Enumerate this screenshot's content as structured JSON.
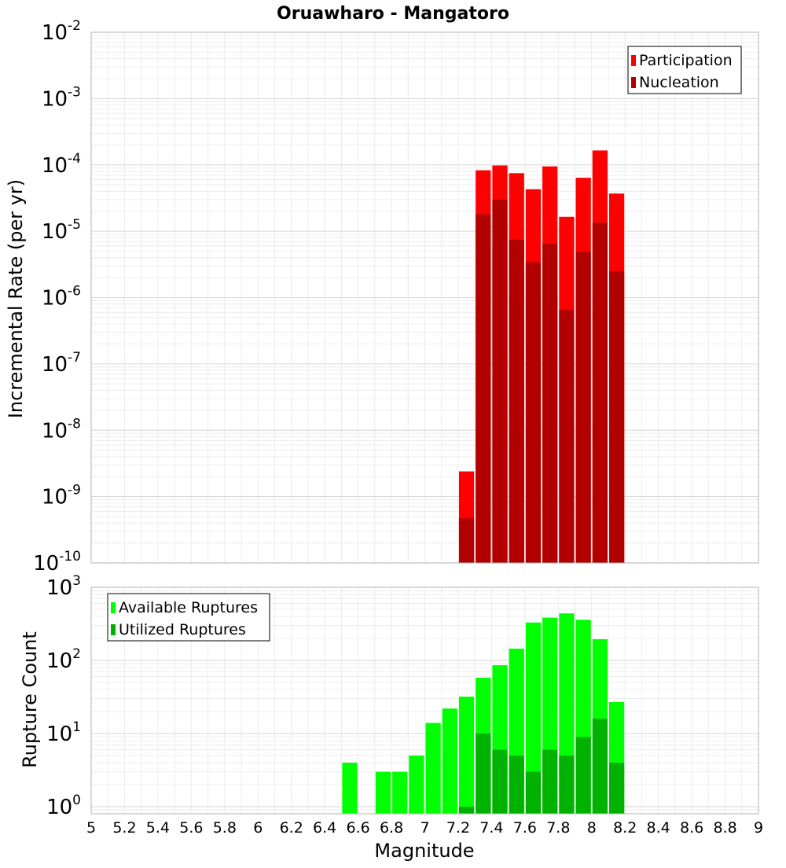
{
  "chart_data": [
    {
      "type": "bar",
      "title": "Oruawharo - Mangatoro",
      "xlabel": "",
      "ylabel": "Incremental Rate (per yr)",
      "y_scale": "log",
      "ylim": [
        1e-10,
        0.01
      ],
      "xlim": [
        5,
        9
      ],
      "bin_width": 0.1,
      "grid": true,
      "legend_position": "top-right",
      "y_ticks": [
        {
          "base": "10",
          "exp": "-10"
        },
        {
          "base": "10",
          "exp": "-9"
        },
        {
          "base": "10",
          "exp": "-8"
        },
        {
          "base": "10",
          "exp": "-7"
        },
        {
          "base": "10",
          "exp": "-6"
        },
        {
          "base": "10",
          "exp": "-5"
        },
        {
          "base": "10",
          "exp": "-4"
        },
        {
          "base": "10",
          "exp": "-3"
        },
        {
          "base": "10",
          "exp": "-2"
        }
      ],
      "series": [
        {
          "name": "Participation",
          "color": "#ff0000",
          "x": [
            7.25,
            7.35,
            7.45,
            7.55,
            7.65,
            7.75,
            7.85,
            7.95,
            8.05,
            8.15
          ],
          "values": [
            2.4e-09,
            8.3e-05,
            9.8e-05,
            7.5e-05,
            4.3e-05,
            9.5e-05,
            1.65e-05,
            6.4e-05,
            0.000165,
            3.7e-05
          ]
        },
        {
          "name": "Nucleation",
          "color": "#b20000",
          "x": [
            7.25,
            7.35,
            7.45,
            7.55,
            7.65,
            7.75,
            7.85,
            7.95,
            8.05,
            8.15
          ],
          "values": [
            4.7e-10,
            1.8e-05,
            3e-05,
            7.5e-06,
            3.4e-06,
            6.5e-06,
            6.5e-07,
            4.9e-06,
            1.35e-05,
            2.5e-06
          ]
        }
      ]
    },
    {
      "type": "bar",
      "title": "",
      "xlabel": "Magnitude",
      "ylabel": "Rupture Count",
      "y_scale": "log",
      "ylim": [
        0.8,
        1000
      ],
      "xlim": [
        5,
        9
      ],
      "bin_width": 0.1,
      "grid": true,
      "legend_position": "top-left",
      "x_ticks": [
        "5",
        "5.2",
        "5.4",
        "5.6",
        "5.8",
        "6",
        "6.2",
        "6.4",
        "6.6",
        "6.8",
        "7",
        "7.2",
        "7.4",
        "7.6",
        "7.8",
        "8",
        "8.2",
        "8.4",
        "8.6",
        "8.8",
        "9"
      ],
      "y_ticks": [
        {
          "base": "10",
          "exp": "0"
        },
        {
          "base": "10",
          "exp": "1"
        },
        {
          "base": "10",
          "exp": "2"
        },
        {
          "base": "10",
          "exp": "3"
        }
      ],
      "series": [
        {
          "name": "Available Ruptures",
          "color": "#00ff00",
          "x": [
            6.55,
            6.75,
            6.85,
            6.95,
            7.05,
            7.15,
            7.25,
            7.35,
            7.45,
            7.55,
            7.65,
            7.75,
            7.85,
            7.95,
            8.05,
            8.15
          ],
          "values": [
            4,
            3,
            3,
            5,
            14,
            22,
            32,
            58,
            86,
            145,
            330,
            385,
            440,
            360,
            195,
            27
          ]
        },
        {
          "name": "Utilized Ruptures",
          "color": "#00b200",
          "x": [
            7.25,
            7.35,
            7.45,
            7.55,
            7.65,
            7.75,
            7.85,
            7.95,
            8.05,
            8.15
          ],
          "values": [
            1,
            10,
            6,
            5,
            3,
            6,
            5,
            9,
            16,
            4
          ]
        }
      ]
    }
  ]
}
